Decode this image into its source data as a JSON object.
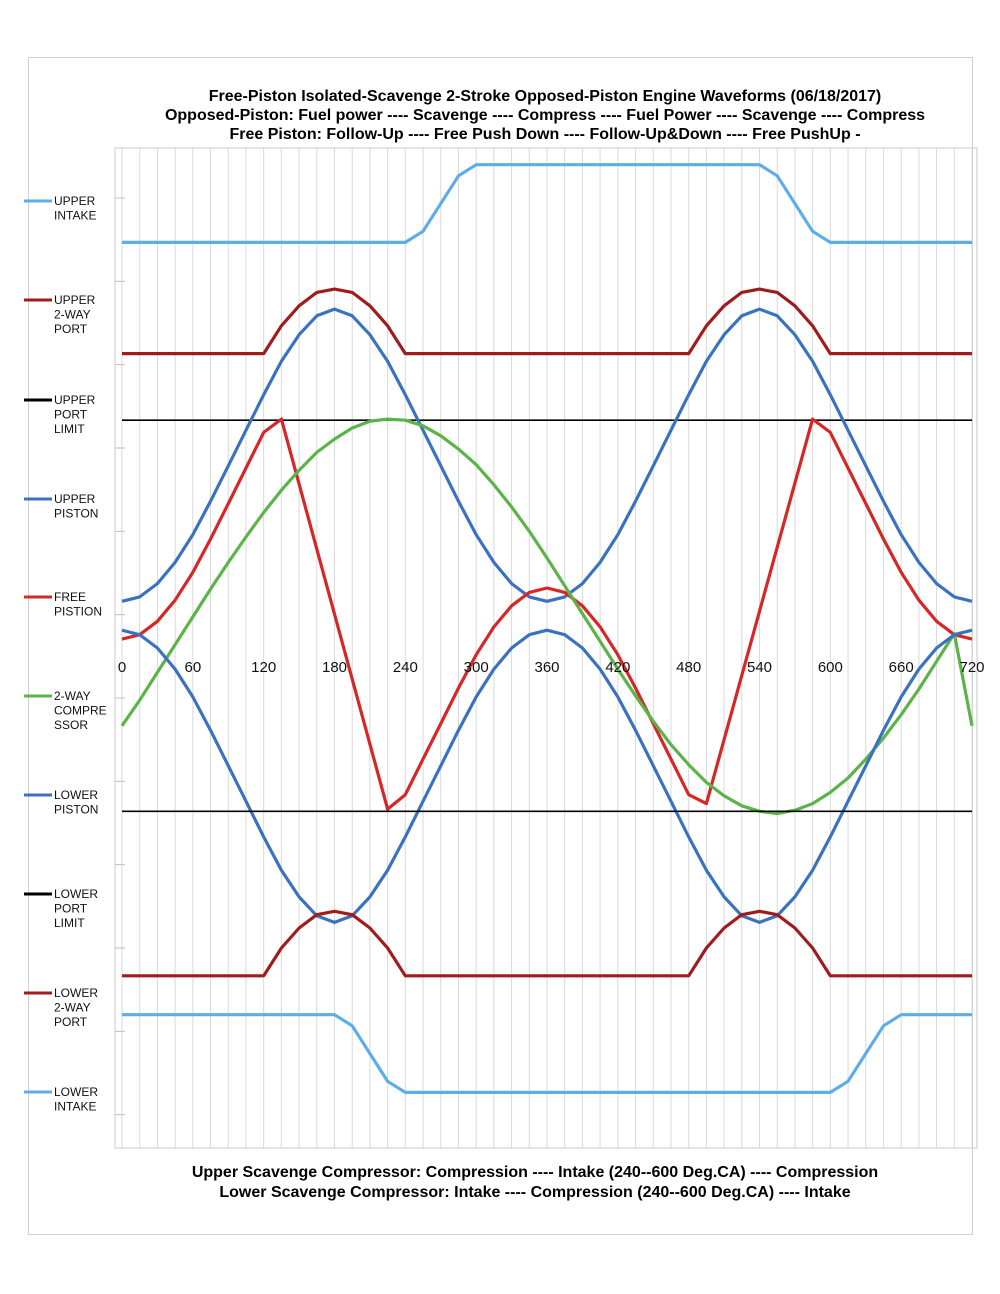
{
  "title": {
    "line1": "Free-Piston Isolated-Scavenge 2-Stroke Opposed-Piston Engine Waveforms (06/18/2017)",
    "line2": "Opposed-Piston: Fuel power ---- Scavenge ---- Compress ---- Fuel Power ---- Scavenge ---- Compress",
    "line3": "Free Piston: Follow-Up ---- Free Push Down ---- Follow-Up&Down ---- Free PushUp -"
  },
  "footer": {
    "line1": "Upper Scavenge Compressor: Compression ---- Intake (240--600 Deg.CA) ---- Compression",
    "line2": "Lower Scavenge Compressor: Intake ---- Compression (240--600 Deg.CA) ---- Intake"
  },
  "chart_data": {
    "type": "line",
    "xlim": [
      0,
      720
    ],
    "ylim": [
      -4.8,
      4.2
    ],
    "grid": true,
    "x_tick_labels": [
      "0",
      "60",
      "120",
      "180",
      "240",
      "300",
      "360",
      "420",
      "480",
      "540",
      "600",
      "660",
      "720"
    ],
    "x_tick_values": [
      0,
      60,
      120,
      180,
      240,
      300,
      360,
      420,
      480,
      540,
      600,
      660,
      720
    ],
    "legend_position": "left",
    "series": [
      {
        "name": "UPPER\nINTAKE",
        "color": "#5dade8",
        "x": [
          0,
          240,
          255,
          285,
          300,
          540,
          555,
          585,
          600,
          720
        ],
        "y": [
          3.35,
          3.35,
          3.45,
          3.95,
          4.05,
          4.05,
          3.95,
          3.45,
          3.35,
          3.35
        ]
      },
      {
        "name": "UPPER\n2-WAY\nPORT",
        "color": "#a01c1c",
        "x": [
          0,
          120,
          135,
          150,
          165,
          180,
          195,
          210,
          225,
          240,
          480,
          495,
          510,
          525,
          540,
          555,
          570,
          585,
          600,
          720
        ],
        "y": [
          2.35,
          2.35,
          2.6,
          2.78,
          2.9,
          2.93,
          2.9,
          2.78,
          2.6,
          2.35,
          2.35,
          2.6,
          2.78,
          2.9,
          2.93,
          2.9,
          2.78,
          2.6,
          2.35,
          2.35
        ]
      },
      {
        "name": "UPPER\nPORT\nLIMIT",
        "color": "#000000",
        "x": [
          0,
          720
        ],
        "y": [
          1.75,
          1.75
        ]
      },
      {
        "name": "UPPER\nPISTON",
        "color": "#3a72c0",
        "x": [
          0,
          15,
          30,
          45,
          60,
          75,
          90,
          105,
          120,
          135,
          150,
          165,
          180,
          195,
          210,
          225,
          240,
          255,
          270,
          285,
          300,
          315,
          330,
          345,
          360,
          375,
          390,
          405,
          420,
          435,
          450,
          465,
          480,
          495,
          510,
          525,
          540,
          555,
          570,
          585,
          600,
          615,
          630,
          645,
          660,
          675,
          690,
          705,
          720
        ],
        "y": [
          0.12,
          0.16,
          0.28,
          0.47,
          0.72,
          1.02,
          1.34,
          1.66,
          1.98,
          2.28,
          2.52,
          2.69,
          2.75,
          2.69,
          2.52,
          2.28,
          1.98,
          1.66,
          1.34,
          1.02,
          0.72,
          0.47,
          0.28,
          0.16,
          0.12,
          0.16,
          0.28,
          0.47,
          0.72,
          1.02,
          1.34,
          1.66,
          1.98,
          2.28,
          2.52,
          2.69,
          2.75,
          2.69,
          2.52,
          2.28,
          1.98,
          1.66,
          1.34,
          1.02,
          0.72,
          0.47,
          0.28,
          0.16,
          0.12
        ]
      },
      {
        "name": "FREE\nPISTION",
        "color": "#d62727",
        "x": [
          0,
          15,
          30,
          45,
          60,
          75,
          90,
          105,
          120,
          135,
          225,
          240,
          255,
          270,
          285,
          300,
          315,
          330,
          345,
          360,
          375,
          390,
          405,
          420,
          435,
          450,
          465,
          480,
          495,
          585,
          600,
          615,
          630,
          645,
          660,
          675,
          690,
          705,
          720
        ],
        "y": [
          -0.22,
          -0.18,
          -0.06,
          0.13,
          0.38,
          0.68,
          1.0,
          1.32,
          1.64,
          1.76,
          -1.75,
          -1.62,
          -1.3,
          -0.98,
          -0.66,
          -0.36,
          -0.11,
          0.08,
          0.2,
          0.24,
          0.2,
          0.08,
          -0.11,
          -0.36,
          -0.66,
          -0.98,
          -1.3,
          -1.62,
          -1.7,
          1.76,
          1.64,
          1.32,
          1.0,
          0.68,
          0.38,
          0.13,
          -0.06,
          -0.18,
          -0.22
        ]
      },
      {
        "name": "2-WAY\nCOMPRE\nSSOR",
        "color": "#5cb34a",
        "x": [
          0,
          15,
          30,
          45,
          60,
          75,
          90,
          105,
          120,
          135,
          150,
          165,
          180,
          195,
          210,
          225,
          240,
          255,
          270,
          285,
          300,
          315,
          330,
          345,
          360,
          375,
          390,
          405,
          420,
          435,
          450,
          465,
          480,
          495,
          510,
          525,
          540,
          555,
          570,
          585,
          600,
          615,
          630,
          645,
          660,
          675,
          690,
          705,
          720
        ],
        "y": [
          -1.0,
          -0.77,
          -0.52,
          -0.27,
          -0.02,
          0.23,
          0.47,
          0.7,
          0.92,
          1.12,
          1.3,
          1.46,
          1.58,
          1.68,
          1.74,
          1.76,
          1.75,
          1.7,
          1.61,
          1.49,
          1.35,
          1.17,
          0.97,
          0.75,
          0.51,
          0.26,
          0.01,
          -0.24,
          -0.49,
          -0.73,
          -0.96,
          -1.17,
          -1.35,
          -1.51,
          -1.63,
          -1.72,
          -1.77,
          -1.79,
          -1.76,
          -1.7,
          -1.6,
          -1.47,
          -1.3,
          -1.11,
          -0.9,
          -0.67,
          -0.42,
          -0.17,
          -1.0
        ]
      },
      {
        "name": "LOWER\nPISTON",
        "color": "#3a72c0",
        "x": [
          0,
          15,
          30,
          45,
          60,
          75,
          90,
          105,
          120,
          135,
          150,
          165,
          180,
          195,
          210,
          225,
          240,
          255,
          270,
          285,
          300,
          315,
          330,
          345,
          360,
          375,
          390,
          405,
          420,
          435,
          450,
          465,
          480,
          495,
          510,
          525,
          540,
          555,
          570,
          585,
          600,
          615,
          630,
          645,
          660,
          675,
          690,
          705,
          720
        ],
        "y": [
          -0.14,
          -0.18,
          -0.3,
          -0.49,
          -0.74,
          -1.04,
          -1.36,
          -1.68,
          -2.0,
          -2.3,
          -2.54,
          -2.71,
          -2.77,
          -2.71,
          -2.54,
          -2.3,
          -2.0,
          -1.68,
          -1.36,
          -1.04,
          -0.74,
          -0.49,
          -0.3,
          -0.18,
          -0.14,
          -0.18,
          -0.3,
          -0.49,
          -0.74,
          -1.04,
          -1.36,
          -1.68,
          -2.0,
          -2.3,
          -2.54,
          -2.71,
          -2.77,
          -2.71,
          -2.54,
          -2.3,
          -2.0,
          -1.68,
          -1.36,
          -1.04,
          -0.74,
          -0.49,
          -0.3,
          -0.18,
          -0.14
        ]
      },
      {
        "name": "LOWER\nPORT\nLIMIT",
        "color": "#000000",
        "x": [
          0,
          720
        ],
        "y": [
          -1.77,
          -1.77
        ]
      },
      {
        "name": "LOWER\n2-WAY\nPORT",
        "color": "#a01c1c",
        "x": [
          0,
          120,
          135,
          150,
          165,
          180,
          195,
          210,
          225,
          240,
          480,
          495,
          510,
          525,
          540,
          555,
          570,
          585,
          600,
          720
        ],
        "y": [
          -3.25,
          -3.25,
          -3.0,
          -2.82,
          -2.7,
          -2.67,
          -2.7,
          -2.82,
          -3.0,
          -3.25,
          -3.25,
          -3.0,
          -2.82,
          -2.7,
          -2.67,
          -2.7,
          -2.82,
          -3.0,
          -3.25,
          -3.25
        ]
      },
      {
        "name": "LOWER\nINTAKE",
        "color": "#5dade8",
        "x": [
          0,
          180,
          195,
          225,
          240,
          600,
          615,
          645,
          660,
          720
        ],
        "y": [
          -3.6,
          -3.6,
          -3.7,
          -4.2,
          -4.3,
          -4.3,
          -4.2,
          -3.7,
          -3.6,
          -3.6
        ]
      }
    ]
  }
}
